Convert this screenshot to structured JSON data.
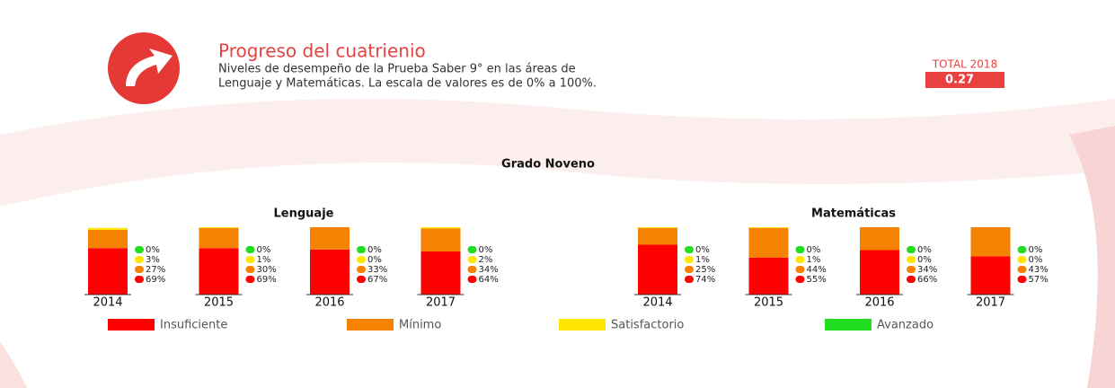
{
  "header": {
    "title": "Progreso del cuatrienio",
    "subtitle": [
      "Niveles de desempeño de la Prueba Saber 9° en las áreas de",
      "Lenguaje y Matemáticas. La escala de valores es de 0% a 100%."
    ],
    "total_label": "TOTAL 2018",
    "total_value": "0.27",
    "section": "Grado Noveno"
  },
  "chart_data": [
    {
      "type": "stacked-bar",
      "title": "Lenguaje",
      "categories": [
        "2014",
        "2015",
        "2016",
        "2017"
      ],
      "ylim": [
        0,
        100
      ],
      "series": [
        {
          "name": "Insuficiente",
          "color": "#ff0000",
          "values": [
            69,
            69,
            67,
            64
          ],
          "value_labels": [
            "69%",
            "69%",
            "67%",
            "64%"
          ]
        },
        {
          "name": "Mínimo",
          "color": "#f58200",
          "values": [
            27,
            30,
            33,
            34
          ],
          "value_labels": [
            "27%",
            "30%",
            "33%",
            "34%"
          ]
        },
        {
          "name": "Satisfactorio",
          "color": "#ffe600",
          "values": [
            3,
            1,
            0,
            2
          ],
          "value_labels": [
            "3%",
            "1%",
            "0%",
            "2%"
          ]
        },
        {
          "name": "Avanzado",
          "color": "#22dd22",
          "values": [
            0,
            0,
            0,
            0
          ],
          "value_labels": [
            "0%",
            "0%",
            "0%",
            "0%"
          ]
        }
      ]
    },
    {
      "type": "stacked-bar",
      "title": "Matemáticas",
      "categories": [
        "2014",
        "2015",
        "2016",
        "2017"
      ],
      "ylim": [
        0,
        100
      ],
      "series": [
        {
          "name": "Insuficiente",
          "color": "#ff0000",
          "values": [
            74,
            55,
            66,
            57
          ],
          "value_labels": [
            "74%",
            "55%",
            "66%",
            "57%"
          ]
        },
        {
          "name": "Mínimo",
          "color": "#f58200",
          "values": [
            25,
            44,
            34,
            43
          ],
          "value_labels": [
            "25%",
            "44%",
            "34%",
            "43%"
          ]
        },
        {
          "name": "Satisfactorio",
          "color": "#ffe600",
          "values": [
            1,
            1,
            0,
            0
          ],
          "value_labels": [
            "1%",
            "1%",
            "0%",
            "0%"
          ]
        },
        {
          "name": "Avanzado",
          "color": "#22dd22",
          "values": [
            0,
            0,
            0,
            0
          ],
          "value_labels": [
            "0%",
            "0%",
            "0%",
            "0%"
          ]
        }
      ]
    }
  ]
}
